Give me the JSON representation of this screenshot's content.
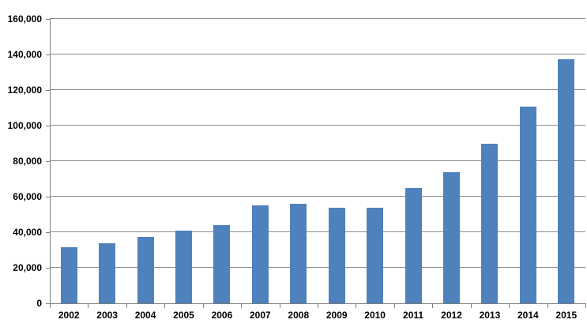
{
  "chart_data": {
    "type": "bar",
    "title": "",
    "xlabel": "",
    "ylabel": "",
    "categories": [
      "2002",
      "2003",
      "2004",
      "2005",
      "2006",
      "2007",
      "2008",
      "2009",
      "2010",
      "2011",
      "2012",
      "2013",
      "2014",
      "2015"
    ],
    "values": [
      31500,
      34000,
      37500,
      41000,
      44000,
      55000,
      56000,
      54000,
      54000,
      65000,
      74000,
      90000,
      110500,
      137500
    ],
    "ylim": [
      0,
      160000
    ],
    "ytick_step": 20000,
    "ytick_labels": [
      "0",
      "20,000",
      "40,000",
      "60,000",
      "80,000",
      "100,000",
      "120,000",
      "140,000",
      "160,000"
    ],
    "grid": true,
    "legend": false,
    "colors": {
      "bar": "#4f81bd",
      "gridline": "#8c8c8c",
      "axis": "#7f7f7f",
      "label": "#000000",
      "background": "#ffffff"
    }
  }
}
